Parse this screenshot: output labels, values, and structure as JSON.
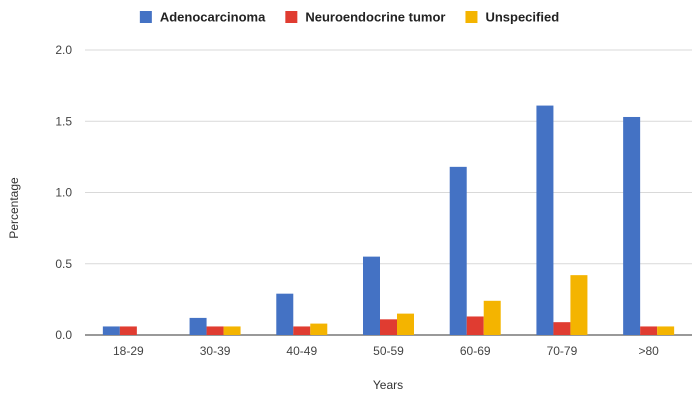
{
  "chart_data": {
    "type": "bar",
    "categories": [
      "18-29",
      "30-39",
      "40-49",
      "50-59",
      "60-69",
      "70-79",
      ">80"
    ],
    "series": [
      {
        "name": "Adenocarcinoma",
        "color": "#4472c4",
        "values": [
          0.06,
          0.12,
          0.29,
          0.55,
          1.18,
          1.61,
          1.53
        ]
      },
      {
        "name": "Neuroendocrine tumor",
        "color": "#e03c31",
        "values": [
          0.06,
          0.06,
          0.06,
          0.11,
          0.13,
          0.09,
          0.06
        ]
      },
      {
        "name": "Unspecified",
        "color": "#f4b400",
        "values": [
          0.0,
          0.06,
          0.08,
          0.15,
          0.24,
          0.42,
          0.06
        ]
      }
    ],
    "xlabel": "Years",
    "ylabel": "Percentage",
    "ylim": [
      0,
      2.0
    ],
    "yticks": [
      "0.0",
      "0.5",
      "1.0",
      "1.5",
      "2.0"
    ],
    "grid": true,
    "legend_position": "top"
  }
}
